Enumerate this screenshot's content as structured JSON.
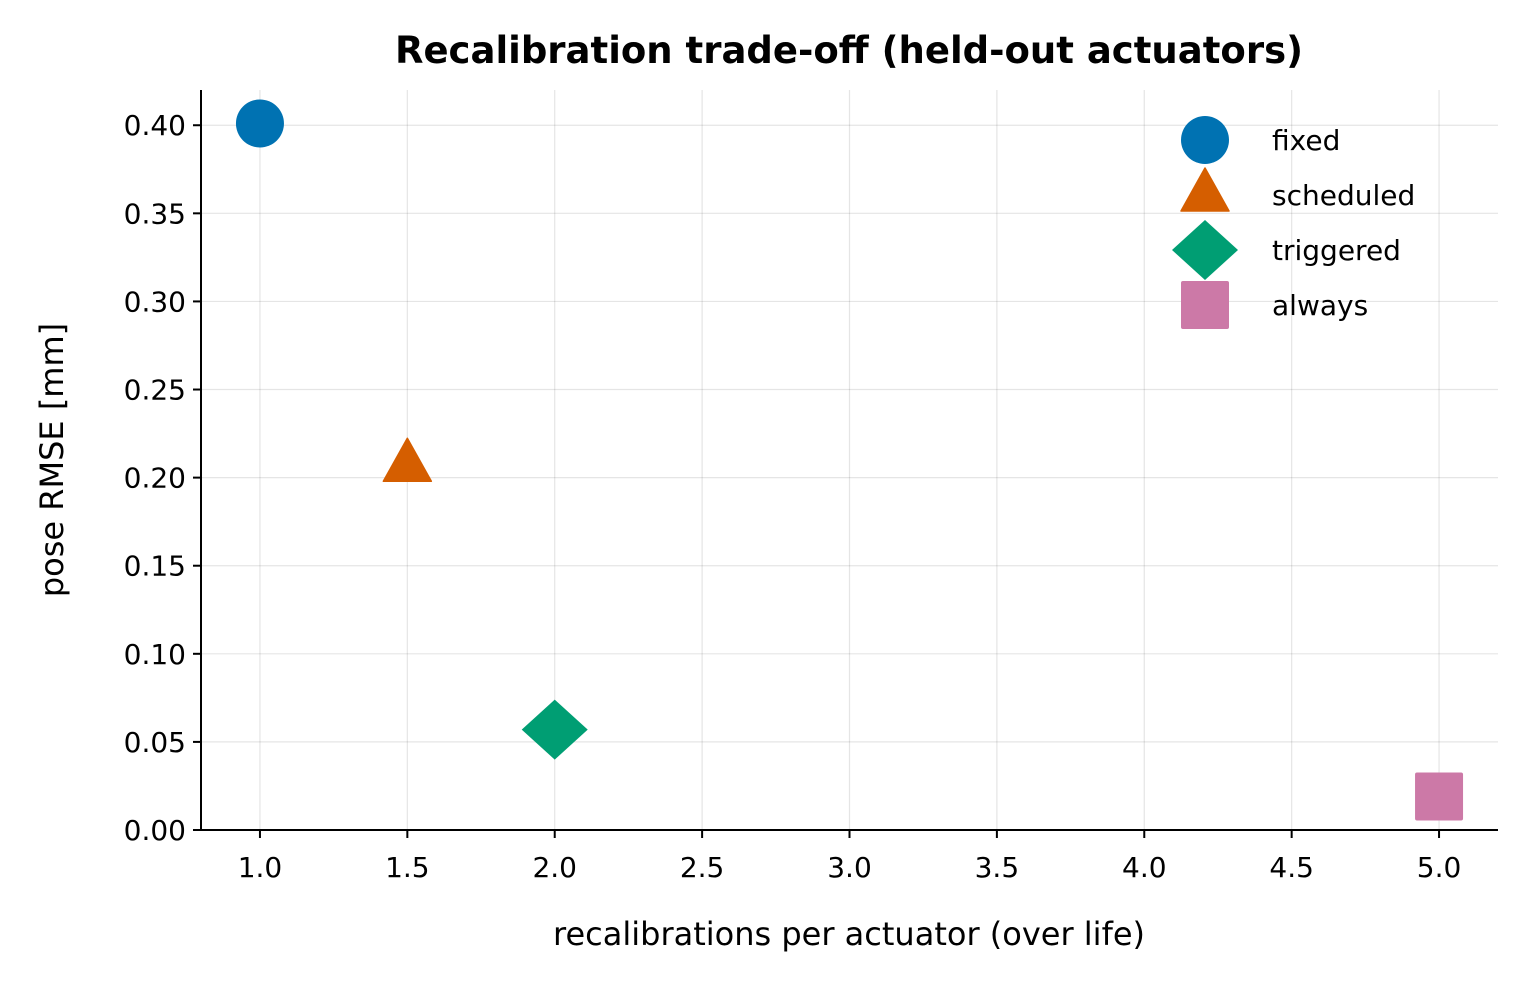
{
  "chart_data": {
    "type": "scatter",
    "title": "Recalibration trade-off (held-out actuators)",
    "xlabel": "recalibrations per actuator (over life)",
    "ylabel": "pose RMSE [mm]",
    "xlim": [
      0.8,
      5.2
    ],
    "ylim": [
      0.0,
      0.42
    ],
    "xticks": [
      1.0,
      1.5,
      2.0,
      2.5,
      3.0,
      3.5,
      4.0,
      4.5,
      5.0
    ],
    "xtick_labels": [
      "1.0",
      "1.5",
      "2.0",
      "2.5",
      "3.0",
      "3.5",
      "4.0",
      "4.5",
      "5.0"
    ],
    "yticks": [
      0.0,
      0.05,
      0.1,
      0.15,
      0.2,
      0.25,
      0.3,
      0.35,
      0.4
    ],
    "ytick_labels": [
      "0.00",
      "0.05",
      "0.10",
      "0.15",
      "0.20",
      "0.25",
      "0.30",
      "0.35",
      "0.40"
    ],
    "grid": true,
    "legend_position": "top-right",
    "series": [
      {
        "name": "fixed",
        "marker": "circle",
        "color": "#0072B2",
        "x": [
          1.0
        ],
        "y": [
          0.401
        ]
      },
      {
        "name": "scheduled",
        "marker": "triangle",
        "color": "#D55E00",
        "x": [
          1.5
        ],
        "y": [
          0.207
        ]
      },
      {
        "name": "triggered",
        "marker": "diamond",
        "color": "#009E73",
        "x": [
          2.0
        ],
        "y": [
          0.057
        ]
      },
      {
        "name": "always",
        "marker": "square",
        "color": "#CC79A7",
        "x": [
          5.0
        ],
        "y": [
          0.019
        ]
      }
    ]
  }
}
